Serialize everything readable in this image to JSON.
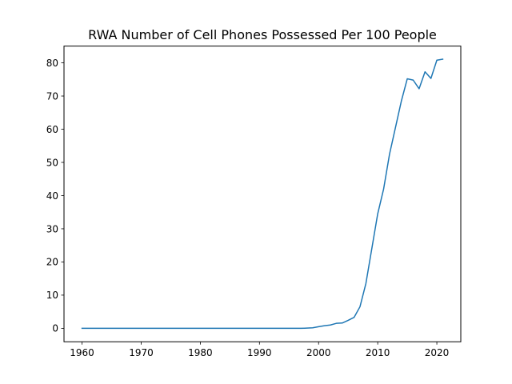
{
  "chart_data": {
    "type": "line",
    "title": "RWA Number of Cell Phones Possessed Per 100 People",
    "xlabel": "",
    "ylabel": "",
    "xlim": [
      1956.95,
      2024.05
    ],
    "ylim": [
      -4.05,
      85.05
    ],
    "xticks": [
      1960,
      1970,
      1980,
      1990,
      2000,
      2010,
      2020
    ],
    "yticks": [
      0,
      10,
      20,
      30,
      40,
      50,
      60,
      70,
      80
    ],
    "grid": false,
    "series": [
      {
        "color": "#1f77b4",
        "x": [
          1960,
          1961,
          1962,
          1963,
          1964,
          1965,
          1966,
          1967,
          1968,
          1969,
          1970,
          1971,
          1972,
          1973,
          1974,
          1975,
          1976,
          1977,
          1978,
          1979,
          1980,
          1981,
          1982,
          1983,
          1984,
          1985,
          1986,
          1987,
          1988,
          1989,
          1990,
          1991,
          1992,
          1993,
          1994,
          1995,
          1996,
          1997,
          1998,
          1999,
          2000,
          2001,
          2002,
          2003,
          2004,
          2005,
          2006,
          2007,
          2008,
          2009,
          2010,
          2011,
          2012,
          2013,
          2014,
          2015,
          2016,
          2017,
          2018,
          2019,
          2020,
          2021
        ],
        "y": [
          0,
          0,
          0,
          0,
          0,
          0,
          0,
          0,
          0,
          0,
          0,
          0,
          0,
          0,
          0,
          0,
          0,
          0,
          0,
          0,
          0,
          0,
          0,
          0,
          0,
          0,
          0,
          0,
          0,
          0,
          0,
          0,
          0,
          0,
          0,
          0,
          0,
          0,
          0.06,
          0.15,
          0.5,
          0.8,
          1.0,
          1.5,
          1.6,
          2.4,
          3.3,
          6.5,
          13.5,
          24.0,
          34.5,
          42.0,
          52.5,
          60.5,
          68.5,
          75.2,
          74.8,
          72.2,
          77.3,
          75.3,
          80.8,
          81.1
        ]
      }
    ]
  }
}
